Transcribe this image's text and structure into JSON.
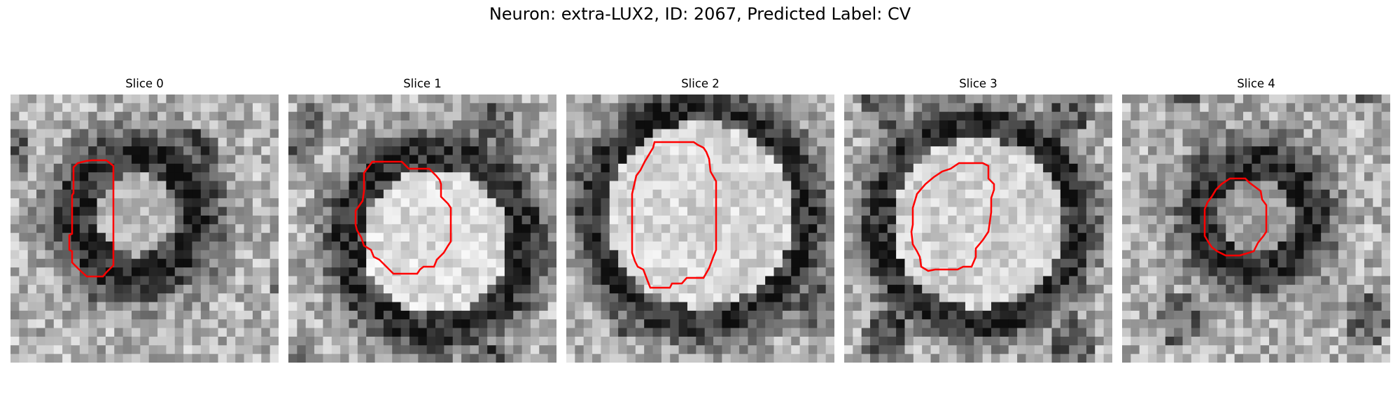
{
  "figure": {
    "title": "Neuron: extra-LUX2, ID: 2067, Predicted Label: CV"
  },
  "panels": [
    {
      "title": "Slice 0",
      "contour_color": "#ff0000"
    },
    {
      "title": "Slice 1",
      "contour_color": "#ff0000"
    },
    {
      "title": "Slice 2",
      "contour_color": "#ff0000"
    },
    {
      "title": "Slice 3",
      "contour_color": "#ff0000"
    },
    {
      "title": "Slice 4",
      "contour_color": "#ff0000"
    }
  ]
}
